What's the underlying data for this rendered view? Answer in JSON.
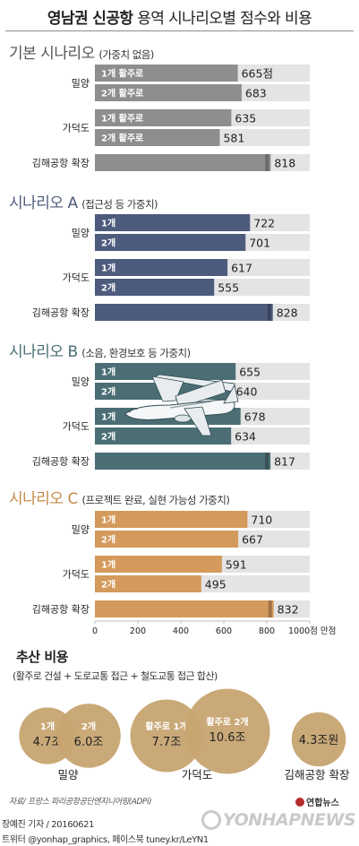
{
  "title": {
    "bold": "영남권 신공항",
    "rest": "용역 시나리오별 점수와 비용"
  },
  "chart_data": [
    {
      "type": "bar",
      "title": "기본 시나리오",
      "note": "(가중치 없음)",
      "color": "#8e8e8e",
      "groups": [
        {
          "site": "밀양",
          "bars": [
            {
              "label": "1개 활주로",
              "value": 665,
              "display": "665점"
            },
            {
              "label": "2개 활주로",
              "value": 683,
              "display": "683"
            }
          ]
        },
        {
          "site": "가덕도",
          "bars": [
            {
              "label": "1개 활주로",
              "value": 635,
              "display": "635"
            },
            {
              "label": "2개 활주로",
              "value": 581,
              "display": "581"
            }
          ]
        },
        {
          "site": "김해공항 확장",
          "bars": [
            {
              "label": "",
              "value": 818,
              "display": "818"
            }
          ]
        }
      ]
    },
    {
      "type": "bar",
      "title": "시나리오 A",
      "note": "(접근성 등 가중치)",
      "color": "#4d5b7d",
      "groups": [
        {
          "site": "밀양",
          "bars": [
            {
              "label": "1개",
              "value": 722,
              "display": "722"
            },
            {
              "label": "2개",
              "value": 701,
              "display": "701"
            }
          ]
        },
        {
          "site": "가덕도",
          "bars": [
            {
              "label": "1개",
              "value": 617,
              "display": "617"
            },
            {
              "label": "2개",
              "value": 555,
              "display": "555"
            }
          ]
        },
        {
          "site": "김해공항 확장",
          "bars": [
            {
              "label": "",
              "value": 828,
              "display": "828"
            }
          ]
        }
      ]
    },
    {
      "type": "bar",
      "title": "시나리오 B",
      "note": "(소음, 환경보호 등 가중치)",
      "color": "#4b6e74",
      "groups": [
        {
          "site": "밀양",
          "bars": [
            {
              "label": "1개",
              "value": 655,
              "display": "655"
            },
            {
              "label": "2개",
              "value": 640,
              "display": "640"
            }
          ]
        },
        {
          "site": "가덕도",
          "bars": [
            {
              "label": "1개",
              "value": 678,
              "display": "678"
            },
            {
              "label": "2개",
              "value": 634,
              "display": "634"
            }
          ]
        },
        {
          "site": "김해공항 확장",
          "bars": [
            {
              "label": "",
              "value": 817,
              "display": "817"
            }
          ]
        }
      ]
    },
    {
      "type": "bar",
      "title": "시나리오 C",
      "note": "(프로젝트 완료, 실현 가능성 가중치)",
      "color": "#d49a5c",
      "groups": [
        {
          "site": "밀양",
          "bars": [
            {
              "label": "1개",
              "value": 710,
              "display": "710"
            },
            {
              "label": "2개",
              "value": 667,
              "display": "667"
            }
          ]
        },
        {
          "site": "가덕도",
          "bars": [
            {
              "label": "1개",
              "value": 591,
              "display": "591"
            },
            {
              "label": "2개",
              "value": 495,
              "display": "495"
            }
          ]
        },
        {
          "site": "김해공항 확장",
          "bars": [
            {
              "label": "",
              "value": 832,
              "display": "832"
            }
          ]
        }
      ]
    }
  ],
  "axis": {
    "max": 1000,
    "ticks": [
      "0",
      "200",
      "400",
      "600",
      "800",
      "1000점 만점"
    ]
  },
  "colors": {
    "track": "#e4e4e4",
    "bubble": "#c7a471",
    "title_gray": "#555555",
    "title_a": "#4d5b7d",
    "title_b": "#4b6e74",
    "title_c": "#c58948"
  },
  "cost": {
    "heading": "추산 비용",
    "sub": "(활주로 건설 + 도로교통 접근 + 철도교통 접근 합산)",
    "unit_note": "조원",
    "bubbles": [
      {
        "label": "1개",
        "value": "4.7조",
        "amount": 4.7,
        "site": "밀양"
      },
      {
        "label": "2개",
        "value": "6.0조",
        "amount": 6.0,
        "site": "밀양"
      },
      {
        "label": "활주로 1개",
        "value": "7.7조",
        "amount": 7.7,
        "site": "가덕도"
      },
      {
        "label": "활주로 2개",
        "value": "10.6조",
        "amount": 10.6,
        "site": "가덕도"
      },
      {
        "label": "",
        "value": "4.3조원",
        "amount": 4.3,
        "site": "김해공항 확장"
      }
    ],
    "sites": [
      "밀양",
      "가덕도",
      "김해공항 확장"
    ]
  },
  "footer": {
    "source": "자료/ 프랑스 파리공항공단엔지니어링(ADPi)",
    "byline": "장예진 기자 / 20160621",
    "social": "트위터 @yonhap_graphics, 페이스북 tuney.kr/LeYN1",
    "logo": "연합뉴스",
    "watermark": "YONHAPNEWS"
  }
}
